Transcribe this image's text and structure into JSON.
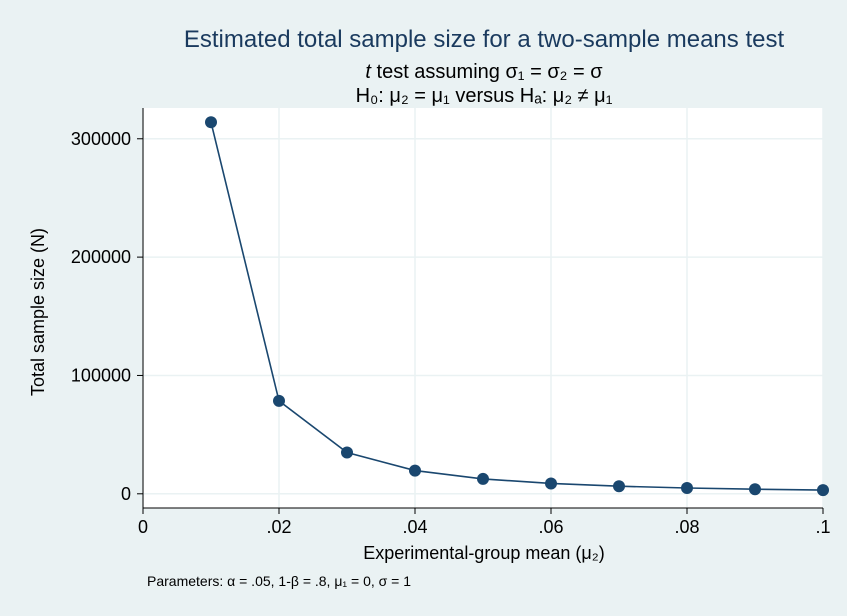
{
  "chart_data": {
    "type": "line",
    "title": "Estimated total sample size for a two-sample means test",
    "subtitle_line1": {
      "prefix": "t",
      "rest": " test assuming σ₁ = σ₂ = σ"
    },
    "subtitle_line2": "H₀: μ₂ = μ₁  versus  Hₐ: μ₂ ≠ μ₁",
    "xlabel": "Experimental-group mean (μ₂)",
    "ylabel": "Total sample size (N)",
    "note": "Parameters: α = .05, 1-β = .8, μ₁ = 0, σ = 1",
    "xlim": [
      0,
      0.1
    ],
    "ylim": [
      -12000,
      326000
    ],
    "x_ticks": [
      0,
      0.02,
      0.04,
      0.06,
      0.08,
      0.1
    ],
    "x_tick_labels": [
      "0",
      ".02",
      ".04",
      ".06",
      ".08",
      ".1"
    ],
    "y_ticks": [
      0,
      100000,
      200000,
      300000
    ],
    "y_tick_labels": [
      "0",
      "100000",
      "200000",
      "300000"
    ],
    "grid": true,
    "series": [
      {
        "x": [
          0.01,
          0.02,
          0.03,
          0.04,
          0.05,
          0.06,
          0.07,
          0.08,
          0.09,
          0.1
        ],
        "values": [
          313972,
          78496,
          34888,
          19626,
          12562,
          8724,
          6410,
          4908,
          3878,
          3142
        ]
      }
    ],
    "colors": {
      "background": "#eaf2f3",
      "plot_area": "#ffffff",
      "grid": "#eaf2f3",
      "line": "#1a476f",
      "marker": "#1a476f",
      "title": "#1a3a5e"
    }
  }
}
